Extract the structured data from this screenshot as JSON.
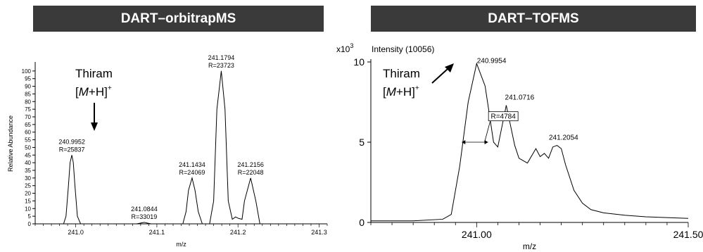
{
  "chart_data": [
    {
      "type": "line",
      "title": "DART–orbitrapMS",
      "xlabel": "m/z",
      "ylabel": "Relative Abundance",
      "xlim": [
        240.95,
        241.31
      ],
      "ylim": [
        0,
        105
      ],
      "xticks": [
        "241.0",
        "241.1",
        "241.2",
        "241.3"
      ],
      "yticks": [
        "0",
        "5",
        "10",
        "15",
        "20",
        "25",
        "30",
        "35",
        "40",
        "45",
        "50",
        "55",
        "60",
        "65",
        "70",
        "75",
        "80",
        "85",
        "90",
        "95",
        "100"
      ],
      "series": [
        {
          "x": [
            240.95,
            240.985,
            240.988,
            240.991,
            240.993,
            240.9952,
            240.997,
            240.999,
            241.002,
            241.006,
            241.075,
            241.08,
            241.0844,
            241.088,
            241.093,
            241.132,
            241.136,
            241.139,
            241.1434,
            241.147,
            241.151,
            241.156,
            241.165,
            241.17,
            241.174,
            241.1794,
            241.184,
            241.188,
            241.193,
            241.197,
            241.201,
            241.205,
            241.208,
            241.2156,
            241.222,
            241.227,
            241.31
          ],
          "y": [
            0,
            0,
            5,
            25,
            40,
            45,
            40,
            25,
            5,
            0,
            0,
            0.5,
            1,
            0.5,
            0,
            0,
            8,
            22,
            30,
            22,
            8,
            0,
            0,
            15,
            75,
            100,
            75,
            15,
            3,
            4.5,
            3.5,
            3,
            15,
            30,
            15,
            0,
            0
          ]
        }
      ],
      "peaks": [
        {
          "x": 240.9952,
          "y": 45,
          "label": "240.9952",
          "resolution": "R=25837"
        },
        {
          "x": 241.0844,
          "y": 1,
          "label": "241.0844",
          "resolution": "R=33019"
        },
        {
          "x": 241.1434,
          "y": 30,
          "label": "241.1434",
          "resolution": "R=24069"
        },
        {
          "x": 241.1794,
          "y": 100,
          "label": "241.1794",
          "resolution": "R=23723"
        },
        {
          "x": 241.2156,
          "y": 30,
          "label": "241.2156",
          "resolution": "R=22048"
        }
      ],
      "annotation": {
        "line1": "Thiram",
        "line2_bracket_open": "[",
        "line2_italic": "M",
        "line2_rest": "+H]",
        "line2_sup": "+"
      },
      "grid": false
    },
    {
      "type": "line",
      "title": "DART–TOFMS",
      "xlabel": "m/z",
      "ylabel": "Intensity (10056)",
      "yscale_label_base": "x10",
      "yscale_label_exp": "3",
      "xlim": [
        240.75,
        241.5
      ],
      "ylim": [
        0,
        10
      ],
      "xticks": [
        "241.00",
        "241.50"
      ],
      "yticks": [
        "0",
        "5",
        "10"
      ],
      "series": [
        {
          "x": [
            240.75,
            240.85,
            240.92,
            240.94,
            240.96,
            240.98,
            241.0,
            241.02,
            241.04,
            241.05,
            241.06,
            241.07,
            241.09,
            241.1,
            241.12,
            241.14,
            241.15,
            241.16,
            241.17,
            241.18,
            241.19,
            241.2,
            241.21,
            241.23,
            241.25,
            241.27,
            241.3,
            241.35,
            241.4,
            241.45,
            241.5
          ],
          "y": [
            0.1,
            0.1,
            0.2,
            0.5,
            3.5,
            7.5,
            9.9,
            8.5,
            5.0,
            4.7,
            6.0,
            7.3,
            4.8,
            4.0,
            3.7,
            4.6,
            4.1,
            4.3,
            4.0,
            4.7,
            4.8,
            4.6,
            3.6,
            2.0,
            1.2,
            0.8,
            0.6,
            0.45,
            0.35,
            0.3,
            0.25
          ]
        }
      ],
      "peaks": [
        {
          "x": 240.9954,
          "y": 9.9,
          "label": "240.9954"
        },
        {
          "x": 241.0716,
          "y": 7.3,
          "label": "241.0716"
        },
        {
          "x": 241.2054,
          "y": 4.8,
          "label": "241.2054"
        }
      ],
      "resolution_box": "R=4784",
      "annotation": {
        "line1": "Thiram",
        "line2_bracket_open": "[",
        "line2_italic": "M",
        "line2_rest": "+H]",
        "line2_sup": "+"
      },
      "grid": false
    }
  ]
}
